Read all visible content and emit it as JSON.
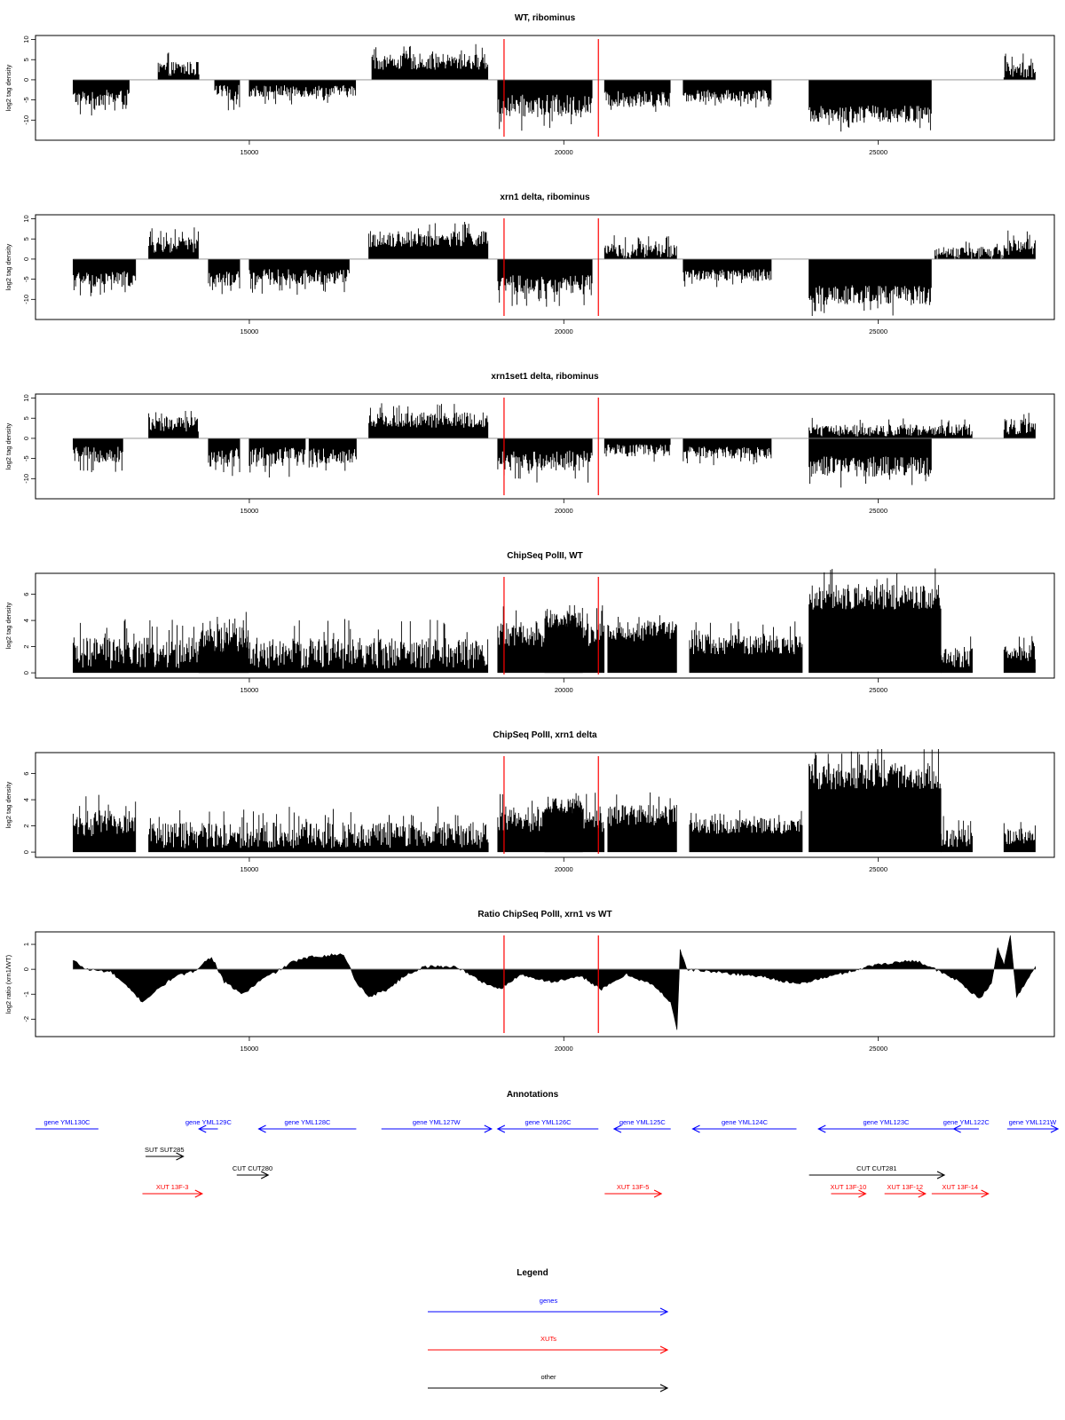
{
  "chart_data": [
    {
      "type": "bar",
      "title": "WT, ribominus",
      "ylabel": "log2 tag density",
      "ylim": [
        -15,
        11
      ],
      "yticks": [
        10,
        5,
        0,
        -5,
        -10
      ],
      "xlim": [
        11600,
        27800
      ],
      "xticks": [
        15000,
        20000,
        25000
      ],
      "markers": [
        19050,
        20550
      ],
      "segments": [
        {
          "x": [
            12200,
            13100
          ],
          "base": -4.5,
          "amp": 2.0
        },
        {
          "x": [
            13550,
            14200
          ],
          "base": 2.8,
          "amp": 1.8
        },
        {
          "x": [
            14450,
            14850
          ],
          "base": -3.2,
          "amp": 2.0
        },
        {
          "x": [
            15000,
            16700
          ],
          "base": -2.8,
          "amp": 1.5
        },
        {
          "x": [
            16950,
            18800
          ],
          "base": 4.5,
          "amp": 2.0
        },
        {
          "x": [
            18950,
            20450
          ],
          "base": -6.5,
          "amp": 2.8
        },
        {
          "x": [
            20650,
            21700
          ],
          "base": -4.8,
          "amp": 2.0
        },
        {
          "x": [
            21900,
            23300
          ],
          "base": -4.0,
          "amp": 1.5
        },
        {
          "x": [
            23900,
            25850
          ],
          "base": -8.5,
          "amp": 2.2
        },
        {
          "x": [
            27000,
            27500
          ],
          "base": 2.5,
          "amp": 2.0
        }
      ]
    },
    {
      "type": "bar",
      "title": "xrn1 delta, ribominus",
      "ylabel": "log2 tag density",
      "ylim": [
        -15,
        11
      ],
      "yticks": [
        10,
        5,
        0,
        -5,
        -10
      ],
      "xlim": [
        11600,
        27800
      ],
      "xticks": [
        15000,
        20000,
        25000
      ],
      "markers": [
        19050,
        20550
      ],
      "segments": [
        {
          "x": [
            12200,
            13200
          ],
          "base": -5.0,
          "amp": 2.0
        },
        {
          "x": [
            13400,
            14200
          ],
          "base": 3.5,
          "amp": 2.0
        },
        {
          "x": [
            14350,
            14850
          ],
          "base": -5.5,
          "amp": 2.5
        },
        {
          "x": [
            15000,
            16600
          ],
          "base": -4.5,
          "amp": 2.0
        },
        {
          "x": [
            16900,
            18800
          ],
          "base": 5.0,
          "amp": 2.0
        },
        {
          "x": [
            18950,
            20450
          ],
          "base": -6.5,
          "amp": 2.5
        },
        {
          "x": [
            20650,
            21800
          ],
          "base": 2.0,
          "amp": 1.8
        },
        {
          "x": [
            21900,
            23300
          ],
          "base": -4.0,
          "amp": 1.5
        },
        {
          "x": [
            23900,
            25850
          ],
          "base": -9.0,
          "amp": 2.5
        },
        {
          "x": [
            25900,
            27000
          ],
          "base": 1.5,
          "amp": 1.5
        },
        {
          "x": [
            27000,
            27500
          ],
          "base": 3.0,
          "amp": 2.0
        }
      ]
    },
    {
      "type": "bar",
      "title": "xrn1set1 delta, ribominus",
      "ylabel": "log2 tag density",
      "ylim": [
        -15,
        11
      ],
      "yticks": [
        10,
        5,
        0,
        -5,
        -10
      ],
      "xlim": [
        11600,
        27800
      ],
      "xticks": [
        15000,
        20000,
        25000
      ],
      "markers": [
        19050,
        20550
      ],
      "segments": [
        {
          "x": [
            12200,
            13000
          ],
          "base": -4.0,
          "amp": 2.0
        },
        {
          "x": [
            13400,
            14200
          ],
          "base": 3.5,
          "amp": 2.0
        },
        {
          "x": [
            14350,
            14850
          ],
          "base": -4.5,
          "amp": 2.5
        },
        {
          "x": [
            15000,
            15900
          ],
          "base": -4.5,
          "amp": 2.5
        },
        {
          "x": [
            15950,
            16700
          ],
          "base": -4.5,
          "amp": 2.0
        },
        {
          "x": [
            16900,
            18800
          ],
          "base": 4.5,
          "amp": 2.0
        },
        {
          "x": [
            18950,
            20450
          ],
          "base": -5.5,
          "amp": 2.5
        },
        {
          "x": [
            20650,
            21700
          ],
          "base": -3.0,
          "amp": 1.5
        },
        {
          "x": [
            21900,
            23300
          ],
          "base": -3.5,
          "amp": 1.5
        },
        {
          "x": [
            23900,
            25850
          ],
          "base": -7.0,
          "amp": 2.5
        },
        {
          "x": [
            23900,
            26500
          ],
          "base": 2.0,
          "amp": 1.5
        },
        {
          "x": [
            27000,
            27500
          ],
          "base": 3.0,
          "amp": 2.0
        }
      ]
    },
    {
      "type": "bar",
      "title": "ChipSeq PolII, WT",
      "ylabel": "log2 tag density",
      "ylim": [
        -0.4,
        7.6
      ],
      "yticks": [
        0,
        2,
        4,
        6
      ],
      "xlim": [
        11600,
        27800
      ],
      "xticks": [
        15000,
        20000,
        25000
      ],
      "markers": [
        19050,
        20550
      ],
      "segments": [
        {
          "x": [
            12200,
            18800
          ],
          "base": 1.5,
          "amp": 1.2
        },
        {
          "x": [
            14200,
            15000
          ],
          "base": 2.5,
          "amp": 1.0
        },
        {
          "x": [
            18950,
            20650
          ],
          "base": 3.0,
          "amp": 1.0
        },
        {
          "x": [
            19700,
            20300
          ],
          "base": 4.0,
          "amp": 0.6
        },
        {
          "x": [
            20700,
            21800
          ],
          "base": 3.2,
          "amp": 0.8
        },
        {
          "x": [
            22000,
            23800
          ],
          "base": 2.2,
          "amp": 0.8
        },
        {
          "x": [
            23900,
            26000
          ],
          "base": 5.8,
          "amp": 1.0
        },
        {
          "x": [
            26000,
            26500
          ],
          "base": 1.2,
          "amp": 0.8
        },
        {
          "x": [
            27000,
            27500
          ],
          "base": 1.5,
          "amp": 0.6
        }
      ]
    },
    {
      "type": "bar",
      "title": "ChipSeq PolII, xrn1 delta",
      "ylabel": "log2 tag density",
      "ylim": [
        -0.4,
        7.6
      ],
      "yticks": [
        0,
        2,
        4,
        6
      ],
      "xlim": [
        11600,
        27800
      ],
      "xticks": [
        15000,
        20000,
        25000
      ],
      "markers": [
        19050,
        20550
      ],
      "segments": [
        {
          "x": [
            12200,
            13200
          ],
          "base": 2.2,
          "amp": 1.0
        },
        {
          "x": [
            13400,
            18800
          ],
          "base": 1.3,
          "amp": 1.0
        },
        {
          "x": [
            18950,
            20650
          ],
          "base": 2.5,
          "amp": 1.0
        },
        {
          "x": [
            19700,
            20300
          ],
          "base": 3.5,
          "amp": 0.6
        },
        {
          "x": [
            20700,
            21800
          ],
          "base": 2.8,
          "amp": 0.8
        },
        {
          "x": [
            22000,
            23800
          ],
          "base": 2.0,
          "amp": 0.6
        },
        {
          "x": [
            23900,
            26000
          ],
          "base": 5.8,
          "amp": 1.0
        },
        {
          "x": [
            26000,
            26500
          ],
          "base": 1.0,
          "amp": 0.8
        },
        {
          "x": [
            27000,
            27500
          ],
          "base": 1.2,
          "amp": 0.6
        }
      ]
    },
    {
      "type": "area",
      "title": "Ratio ChipSeq PolII, xrn1 vs WT",
      "ylabel": "log2 ratio (xrn1/WT)",
      "ylim": [
        -2.7,
        1.5
      ],
      "yticks": [
        1,
        0,
        -1,
        -2
      ],
      "xlim": [
        11600,
        27800
      ],
      "xticks": [
        15000,
        20000,
        25000
      ],
      "markers": [
        19050,
        20550
      ],
      "points": [
        [
          12200,
          0.35
        ],
        [
          12400,
          0.0
        ],
        [
          12800,
          -0.1
        ],
        [
          13100,
          -0.8
        ],
        [
          13300,
          -1.3
        ],
        [
          13500,
          -0.9
        ],
        [
          13800,
          -0.3
        ],
        [
          14100,
          -0.1
        ],
        [
          14400,
          0.5
        ],
        [
          14600,
          -0.5
        ],
        [
          14900,
          -1.0
        ],
        [
          15200,
          -0.4
        ],
        [
          15500,
          0.0
        ],
        [
          15700,
          0.3
        ],
        [
          16000,
          0.5
        ],
        [
          16500,
          0.6
        ],
        [
          16700,
          -0.5
        ],
        [
          16900,
          -1.1
        ],
        [
          17200,
          -0.8
        ],
        [
          17500,
          -0.2
        ],
        [
          17800,
          0.1
        ],
        [
          18300,
          0.1
        ],
        [
          18700,
          -0.5
        ],
        [
          19000,
          -0.8
        ],
        [
          19300,
          -0.2
        ],
        [
          19800,
          -0.5
        ],
        [
          20300,
          -0.3
        ],
        [
          20600,
          -0.8
        ],
        [
          21000,
          -0.2
        ],
        [
          21400,
          -0.6
        ],
        [
          21700,
          -1.3
        ],
        [
          21800,
          -2.4
        ],
        [
          21850,
          0.8
        ],
        [
          21950,
          0.0
        ],
        [
          22400,
          -0.1
        ],
        [
          23200,
          -0.3
        ],
        [
          23700,
          -0.6
        ],
        [
          24200,
          -0.3
        ],
        [
          25000,
          0.2
        ],
        [
          25600,
          0.35
        ],
        [
          25900,
          0.0
        ],
        [
          26300,
          -0.5
        ],
        [
          26600,
          -1.2
        ],
        [
          26800,
          -0.6
        ],
        [
          26900,
          0.9
        ],
        [
          27000,
          0.2
        ],
        [
          27100,
          1.3
        ],
        [
          27200,
          -1.1
        ],
        [
          27400,
          -0.3
        ],
        [
          27500,
          0.1
        ]
      ]
    }
  ],
  "annotations": {
    "title": "Annotations",
    "features": [
      {
        "label": "gene YML130C",
        "cls": "genes",
        "start": 11100,
        "end": 12600,
        "dir": "none",
        "row": 0
      },
      {
        "label": "gene YML129C",
        "cls": "genes",
        "start": 14200,
        "end": 14500,
        "dir": "left",
        "row": 0
      },
      {
        "label": "gene YML128C",
        "cls": "genes",
        "start": 15150,
        "end": 16700,
        "dir": "left",
        "row": 0
      },
      {
        "label": "gene YML127W",
        "cls": "genes",
        "start": 17100,
        "end": 18850,
        "dir": "right",
        "row": 0
      },
      {
        "label": "gene YML126C",
        "cls": "genes",
        "start": 18950,
        "end": 20550,
        "dir": "left",
        "row": 0
      },
      {
        "label": "gene YML125C",
        "cls": "genes",
        "start": 20800,
        "end": 21700,
        "dir": "left",
        "row": 0
      },
      {
        "label": "gene YML124C",
        "cls": "genes",
        "start": 22050,
        "end": 23700,
        "dir": "left",
        "row": 0
      },
      {
        "label": "gene YML123C",
        "cls": "genes",
        "start": 24050,
        "end": 26200,
        "dir": "left",
        "row": 0
      },
      {
        "label": "gene YML122C",
        "cls": "genes",
        "start": 26200,
        "end": 26600,
        "dir": "left",
        "row": 0
      },
      {
        "label": "gene YML121W",
        "cls": "genes",
        "start": 27050,
        "end": 28000,
        "dir": "right",
        "row": 0
      },
      {
        "label": "SUT SUT285",
        "cls": "other",
        "start": 13350,
        "end": 13950,
        "dir": "right",
        "row": 1
      },
      {
        "label": "CUT CUT280",
        "cls": "other",
        "start": 14800,
        "end": 15300,
        "dir": "right",
        "row": 2
      },
      {
        "label": "CUT CUT281",
        "cls": "other",
        "start": 23900,
        "end": 26050,
        "dir": "right",
        "row": 2
      },
      {
        "label": "XUT 13F-3",
        "cls": "XUTs",
        "start": 13300,
        "end": 14250,
        "dir": "right",
        "row": 3
      },
      {
        "label": "XUT 13F-5",
        "cls": "XUTs",
        "start": 20650,
        "end": 21550,
        "dir": "right",
        "row": 3
      },
      {
        "label": "XUT 13F-10",
        "cls": "XUTs",
        "start": 24250,
        "end": 24800,
        "dir": "right",
        "row": 3
      },
      {
        "label": "XUT 13F-12",
        "cls": "XUTs",
        "start": 25100,
        "end": 25750,
        "dir": "right",
        "row": 3
      },
      {
        "label": "XUT 13F-14",
        "cls": "XUTs",
        "start": 25850,
        "end": 26750,
        "dir": "right",
        "row": 3
      }
    ]
  },
  "legend": {
    "title": "Legend",
    "items": [
      {
        "label": "genes",
        "color": "#0000ff"
      },
      {
        "label": "XUTs",
        "color": "#ff0000"
      },
      {
        "label": "other",
        "color": "#000000"
      }
    ]
  },
  "colors": {
    "bars": "#000000",
    "markers": "#ff0000",
    "genes": "#0000ff",
    "XUTs": "#ff0000",
    "other": "#000000"
  }
}
